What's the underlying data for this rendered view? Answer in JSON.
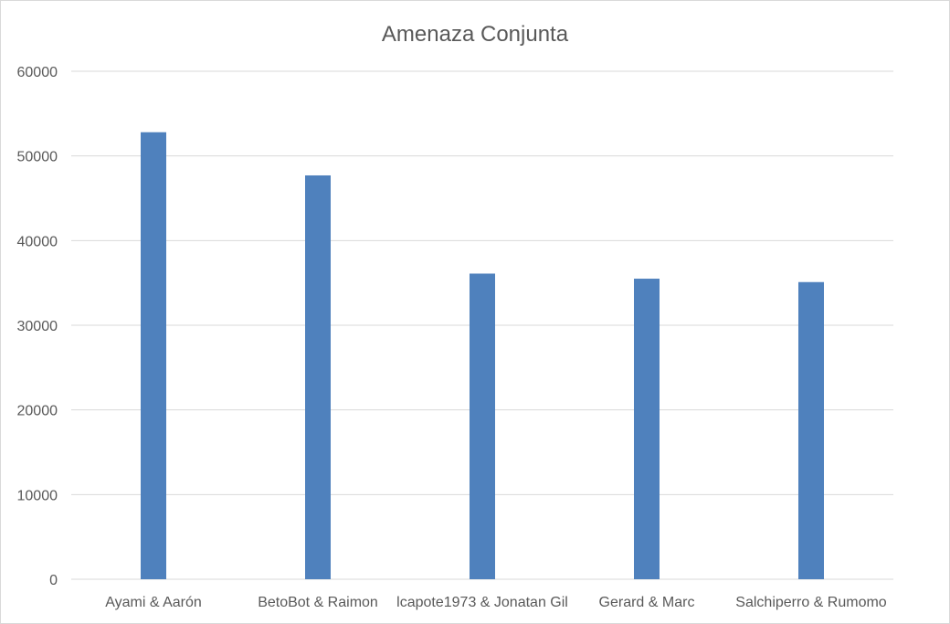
{
  "chart_data": {
    "type": "bar",
    "title": "Amenaza Conjunta",
    "categories": [
      "Ayami & Aarón",
      "BetoBot & Raimon",
      "lcapote1973 & Jonatan Gil",
      "Gerard & Marc",
      "Salchiperro & Rumomo"
    ],
    "values": [
      52800,
      47700,
      36100,
      35500,
      35100
    ],
    "ylim": [
      0,
      60000
    ],
    "yticks": [
      0,
      10000,
      20000,
      30000,
      40000,
      50000,
      60000
    ],
    "yticks_labels": [
      "0",
      "10000",
      "20000",
      "30000",
      "40000",
      "50000",
      "60000"
    ],
    "grid": true,
    "legend": "none",
    "colors": {
      "bar": "#4f81bd",
      "grid": "#d9d9d9",
      "text": "#595959"
    }
  }
}
